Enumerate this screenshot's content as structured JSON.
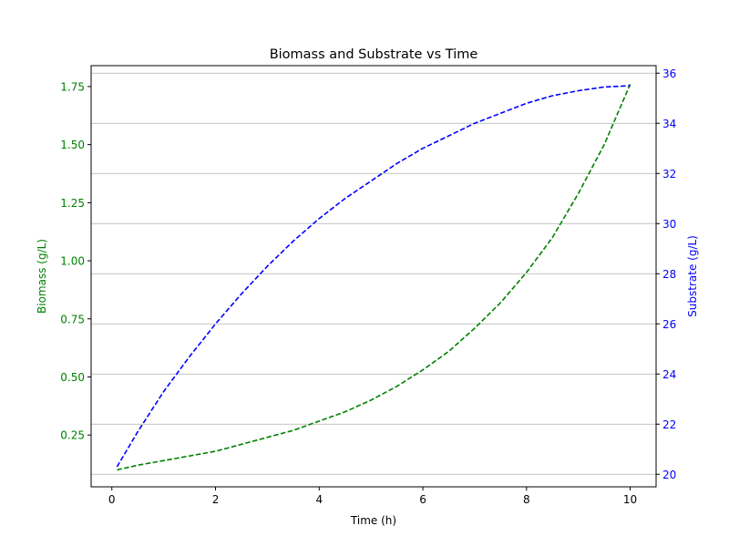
{
  "chart_data": {
    "type": "line",
    "title": "Biomass and Substrate vs Time",
    "xlabel": "Time (h)",
    "xlim": [
      -0.4,
      10.5
    ],
    "x_ticks": [
      0,
      2,
      4,
      6,
      8,
      10
    ],
    "grid": "horizontal (right axis)",
    "axes": {
      "left": {
        "label": "Biomass (g/L)",
        "color": "#008000",
        "ylim": [
          0.027,
          1.84
        ],
        "ticks": [
          0.25,
          0.5,
          0.75,
          1.0,
          1.25,
          1.5,
          1.75
        ],
        "tick_labels": [
          "0.25",
          "0.50",
          "0.75",
          "1.00",
          "1.25",
          "1.50",
          "1.75"
        ]
      },
      "right": {
        "label": "Substrate (g/L)",
        "color": "#0000ff",
        "ylim": [
          19.5,
          36.3
        ],
        "ticks": [
          20,
          22,
          24,
          26,
          28,
          30,
          32,
          34,
          36
        ],
        "tick_labels": [
          "20",
          "22",
          "24",
          "26",
          "28",
          "30",
          "32",
          "34",
          "36"
        ]
      }
    },
    "series": [
      {
        "axis": "left",
        "color": "#008000",
        "style": "dashed",
        "x": [
          0.1,
          0.5,
          1,
          1.5,
          2,
          2.5,
          3,
          3.5,
          4,
          4.5,
          5,
          5.5,
          6,
          6.5,
          7,
          7.5,
          8,
          8.5,
          9,
          9.5,
          10
        ],
        "values": [
          0.1,
          0.12,
          0.14,
          0.16,
          0.18,
          0.21,
          0.24,
          0.27,
          0.31,
          0.35,
          0.4,
          0.46,
          0.53,
          0.61,
          0.71,
          0.82,
          0.95,
          1.1,
          1.29,
          1.5,
          1.76
        ]
      },
      {
        "axis": "right",
        "color": "#0000ff",
        "style": "dashed",
        "x": [
          0.1,
          0.5,
          1,
          1.5,
          2,
          2.5,
          3,
          3.5,
          4,
          4.5,
          5,
          5.5,
          6,
          6.5,
          7,
          7.5,
          8,
          8.5,
          9,
          9.5,
          10
        ],
        "values": [
          20.3,
          21.7,
          23.3,
          24.7,
          26.0,
          27.2,
          28.3,
          29.3,
          30.2,
          31.0,
          31.7,
          32.4,
          33.0,
          33.5,
          34.0,
          34.4,
          34.8,
          35.1,
          35.3,
          35.45,
          35.5
        ]
      }
    ]
  }
}
